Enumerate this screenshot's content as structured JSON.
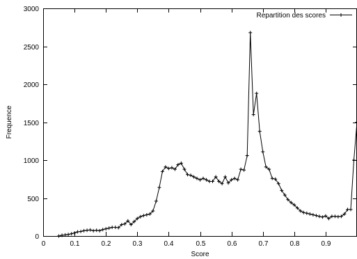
{
  "chart_data": {
    "type": "line",
    "xlabel": "Score",
    "ylabel": "Frequence",
    "xlim": [
      0,
      1
    ],
    "ylim": [
      0,
      3000
    ],
    "grid": false,
    "legend_placement": "top-right",
    "x_ticks": [
      0,
      0.1,
      0.2,
      0.3,
      0.4,
      0.5,
      0.6,
      0.7,
      0.8,
      0.9
    ],
    "x_tick_labels": [
      "0",
      "0.1",
      "0.2",
      "0.3",
      "0.4",
      "0.5",
      "0.6",
      "0.7",
      "0.8",
      "0.9"
    ],
    "y_ticks": [
      0,
      500,
      1000,
      1500,
      2000,
      2500,
      3000
    ],
    "y_tick_labels": [
      "0",
      "500",
      "1000",
      "1500",
      "2000",
      "2500",
      "3000"
    ],
    "colors": {
      "line": "#000000",
      "axis": "#000000",
      "background": "#ffffff"
    },
    "series": [
      {
        "name": "Repartition des scores",
        "marker": "plus",
        "x": [
          0.05,
          0.06,
          0.07,
          0.08,
          0.09,
          0.1,
          0.11,
          0.12,
          0.13,
          0.14,
          0.15,
          0.16,
          0.17,
          0.18,
          0.19,
          0.2,
          0.21,
          0.22,
          0.23,
          0.24,
          0.25,
          0.26,
          0.27,
          0.28,
          0.29,
          0.3,
          0.31,
          0.32,
          0.33,
          0.34,
          0.35,
          0.36,
          0.37,
          0.38,
          0.39,
          0.4,
          0.41,
          0.42,
          0.43,
          0.44,
          0.45,
          0.46,
          0.47,
          0.48,
          0.49,
          0.5,
          0.51,
          0.52,
          0.53,
          0.54,
          0.55,
          0.56,
          0.57,
          0.58,
          0.59,
          0.6,
          0.61,
          0.62,
          0.63,
          0.64,
          0.65,
          0.66,
          0.67,
          0.68,
          0.69,
          0.7,
          0.71,
          0.72,
          0.73,
          0.74,
          0.75,
          0.76,
          0.77,
          0.78,
          0.79,
          0.8,
          0.81,
          0.82,
          0.83,
          0.84,
          0.85,
          0.86,
          0.87,
          0.88,
          0.89,
          0.9,
          0.91,
          0.92,
          0.93,
          0.94,
          0.95,
          0.96,
          0.97,
          0.98,
          0.99,
          1.0
        ],
        "y": [
          0,
          10,
          15,
          20,
          30,
          40,
          55,
          60,
          70,
          75,
          80,
          70,
          75,
          70,
          85,
          95,
          105,
          115,
          115,
          110,
          150,
          160,
          200,
          150,
          190,
          230,
          255,
          270,
          280,
          290,
          330,
          460,
          640,
          850,
          910,
          890,
          900,
          880,
          940,
          960,
          880,
          810,
          800,
          780,
          760,
          740,
          760,
          740,
          720,
          720,
          780,
          720,
          690,
          780,
          700,
          740,
          760,
          740,
          880,
          870,
          1060,
          2680,
          1600,
          1880,
          1380,
          1110,
          910,
          880,
          760,
          750,
          690,
          600,
          540,
          480,
          440,
          410,
          370,
          330,
          310,
          300,
          290,
          280,
          270,
          260,
          250,
          265,
          230,
          260,
          260,
          255,
          260,
          290,
          350,
          350,
          1000,
          1500
        ]
      }
    ]
  }
}
